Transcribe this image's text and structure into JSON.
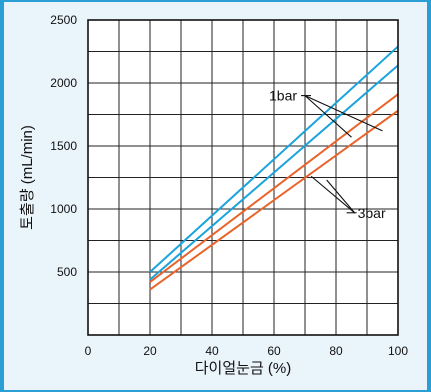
{
  "chart_data": {
    "type": "line",
    "xlabel": "다이얼눈금 (%)",
    "ylabel": "토출량 (mL/min)",
    "xlim": [
      0,
      100
    ],
    "ylim": [
      0,
      2500
    ],
    "xticks": [
      "0",
      "20",
      "40",
      "60",
      "80",
      "100"
    ],
    "yticks": [
      "500",
      "1000",
      "1500",
      "2000",
      "2500"
    ],
    "grid": true,
    "series": [
      {
        "x": [
          20,
          100
        ],
        "y": [
          500,
          2290
        ],
        "color": "#1aa3dc"
      },
      {
        "x": [
          20,
          100
        ],
        "y": [
          440,
          2140
        ],
        "color": "#1aa3dc"
      },
      {
        "x": [
          20,
          100
        ],
        "y": [
          420,
          1910
        ],
        "color": "#e8642a"
      },
      {
        "x": [
          20,
          100
        ],
        "y": [
          360,
          1780
        ],
        "color": "#e8642a"
      }
    ],
    "annotations": [
      {
        "text": "1bar",
        "anchor": [
          70,
          1900
        ],
        "pointers": [
          [
            85,
            1570
          ],
          [
            95,
            1620
          ]
        ]
      },
      {
        "text": "3bar",
        "anchor": [
          86,
          970
        ],
        "pointers": [
          [
            72,
            1260
          ],
          [
            77,
            1230
          ]
        ]
      }
    ]
  }
}
